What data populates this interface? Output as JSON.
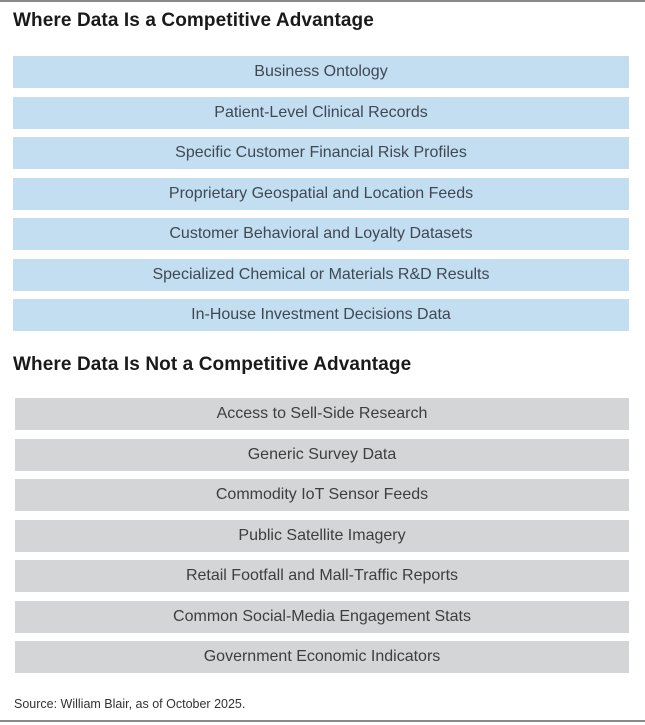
{
  "section_advantage": {
    "title": "Where Data Is a Competitive Advantage",
    "items": [
      "Business Ontology",
      "Patient-Level Clinical Records",
      "Specific Customer Financial Risk Profiles",
      "Proprietary Geospatial and Location Feeds",
      "Customer Behavioral and Loyalty Datasets",
      "Specialized Chemical or Materials R&D Results",
      "In-House Investment Decisions Data"
    ],
    "box_color": "#c2def0"
  },
  "section_not_advantage": {
    "title": "Where Data Is Not a Competitive Advantage",
    "items": [
      "Access to Sell-Side Research",
      "Generic Survey Data",
      "Commodity IoT Sensor Feeds",
      "Public Satellite Imagery",
      "Retail Footfall and Mall-Traffic Reports",
      "Common Social-Media Engagement Stats",
      "Government Economic Indicators"
    ],
    "box_color": "#d4d5d7"
  },
  "source": "Source: William Blair, as of October 2025."
}
